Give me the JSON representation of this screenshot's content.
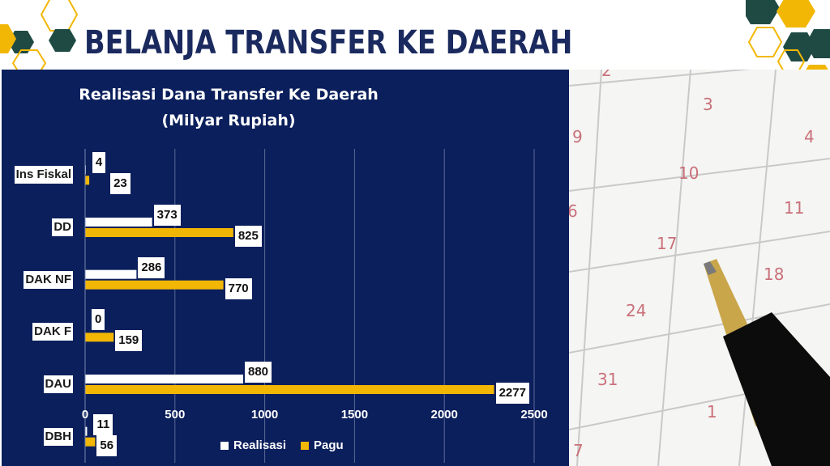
{
  "slide": {
    "title": "BELANJA TRANSFER KE DAERAH"
  },
  "chart_data": {
    "type": "bar",
    "orientation": "horizontal",
    "title": "Realisasi Dana Transfer Ke Daerah",
    "subtitle": "(Milyar Rupiah)",
    "categories": [
      "Ins Fiskal",
      "DD",
      "DAK NF",
      "DAK F",
      "DAU",
      "DBH"
    ],
    "series": [
      {
        "name": "Realisasi",
        "color": "#ffffff",
        "values": [
          4,
          373,
          286,
          0,
          880,
          11
        ]
      },
      {
        "name": "Pagu",
        "color": "#f2b705",
        "values": [
          23,
          825,
          770,
          159,
          2277,
          56
        ]
      }
    ],
    "x_ticks": [
      "0",
      "500",
      "1000",
      "1500",
      "2000",
      "2500"
    ],
    "xlim": [
      0,
      2500
    ],
    "grid": true,
    "legend": "bottom"
  },
  "colors": {
    "panel": "#0b1f5c",
    "title": "#1b2a5e",
    "accent": "#f2b705",
    "hex_dark": "#1f4a44"
  }
}
